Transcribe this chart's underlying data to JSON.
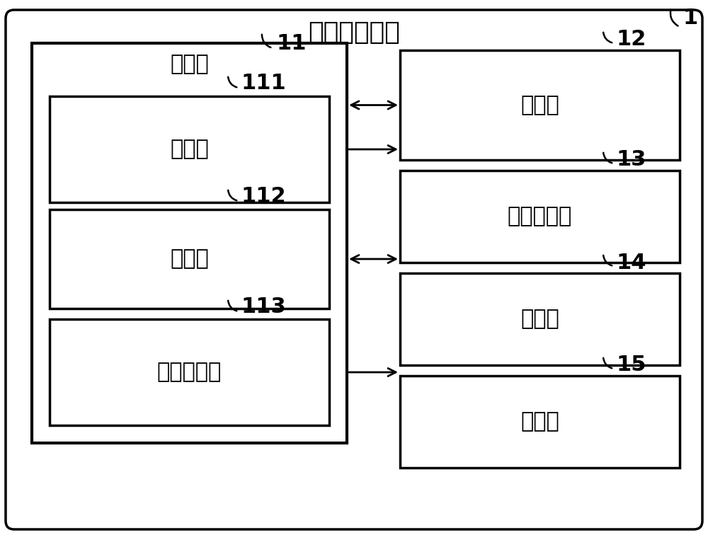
{
  "title": "信息处理装置",
  "label_1": "1",
  "label_11": "11",
  "label_12": "12",
  "label_13": "13",
  "label_14": "14",
  "label_15": "15",
  "label_111": "111",
  "label_112": "112",
  "label_113": "113",
  "text_control": "控制部",
  "text_storage": "存储部",
  "text_process": "处理部",
  "text_input": "输入受理部",
  "text_estimate": "估计部",
  "text_comm": "通信部",
  "text_display_ctrl": "显示控制部",
  "text_display": "显示部",
  "bg_color": "#ffffff",
  "box_color": "#000000",
  "font_size_title": 26,
  "font_size_label": 22,
  "font_size_ref": 22
}
